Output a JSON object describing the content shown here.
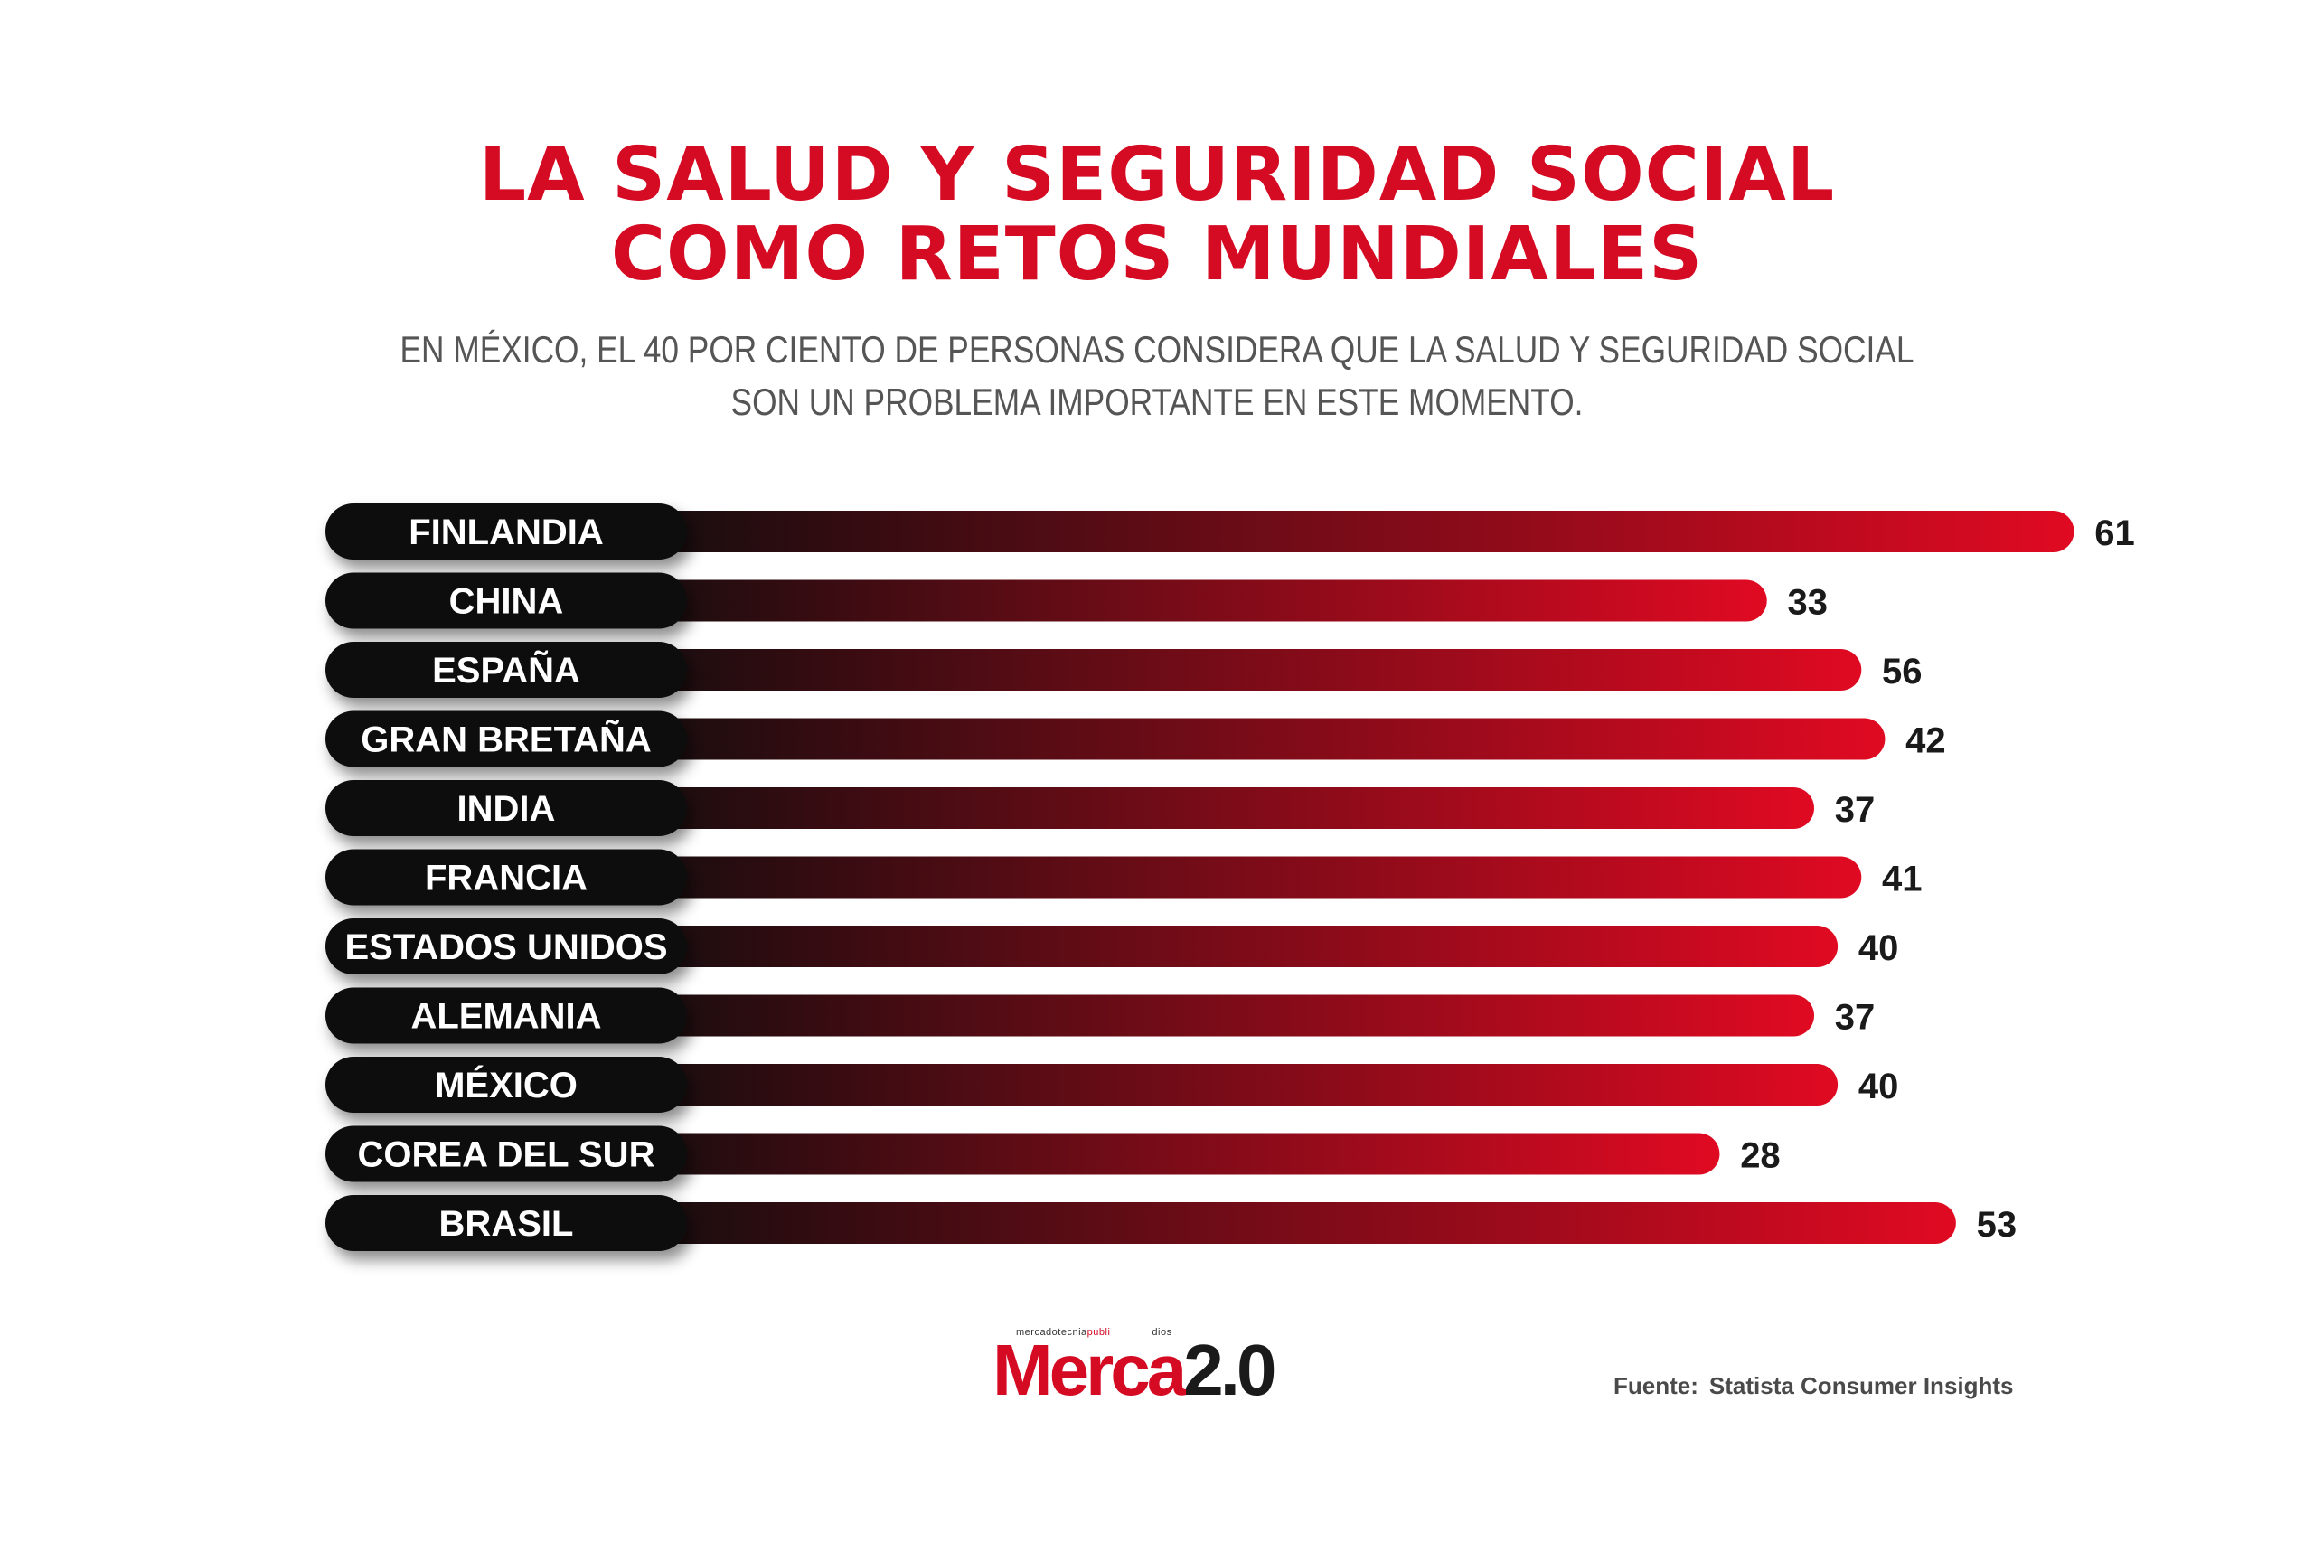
{
  "title": {
    "line1": "LA SALUD Y SEGURIDAD SOCIAL",
    "line2": "COMO RETOS MUNDIALES"
  },
  "subtitle": {
    "line1": "EN MÉXICO, EL 40 POR CIENTO DE PERSONAS CONSIDERA QUE LA SALUD Y SEGURIDAD SOCIAL",
    "line2": "SON UN PROBLEMA IMPORTANTE EN ESTE MOMENTO."
  },
  "chart_data": {
    "type": "bar",
    "orientation": "horizontal",
    "title": "LA SALUD Y SEGURIDAD SOCIAL COMO RETOS MUNDIALES",
    "categories": [
      "FINLANDIA",
      "CHINA",
      "ESPAÑA",
      "GRAN BRETAÑA",
      "INDIA",
      "FRANCIA",
      "ESTADOS UNIDOS",
      "ALEMANIA",
      "MÉXICO",
      "COREA DEL SUR",
      "BRASIL"
    ],
    "values": [
      61,
      33,
      56,
      42,
      37,
      41,
      40,
      37,
      40,
      28,
      53
    ],
    "bar_length_values": [
      61,
      48,
      52,
      53,
      50,
      52,
      51,
      50,
      51,
      46,
      56
    ],
    "xlabel": "",
    "ylabel": "",
    "grid": false,
    "legend": "none",
    "colors": {
      "bar_start": "#0d0d0d",
      "bar_end": "#e00a22",
      "label_pill": "#111111",
      "value_text": "#1a1a1a"
    }
  },
  "logo": {
    "tagline_a": "mercadotecnia",
    "tagline_b": "publi",
    "tagline_c": "dios",
    "brand_a": "Merca",
    "brand_b": "2.0"
  },
  "source": {
    "label": "Fuente:",
    "text": "Statista Consumer Insights"
  }
}
